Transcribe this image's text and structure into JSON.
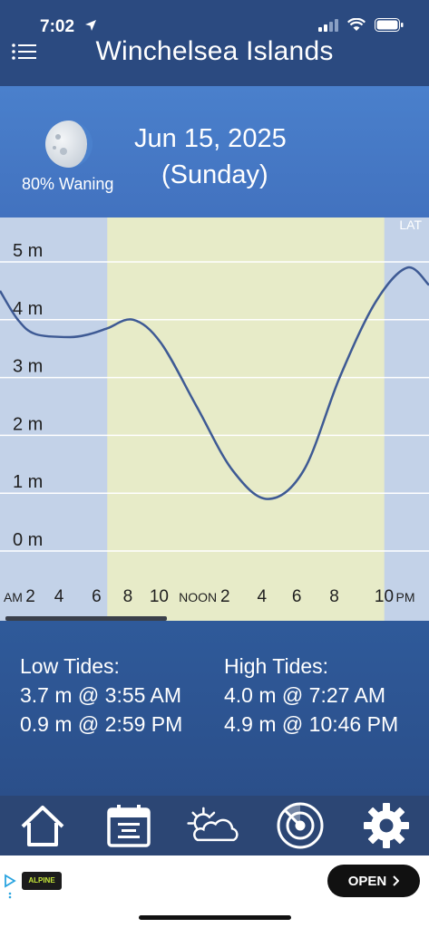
{
  "status": {
    "time": "7:02"
  },
  "header": {
    "title": "Winchelsea Islands"
  },
  "date_panel": {
    "moon_phase": "80% Waning",
    "date": "Jun 15, 2025",
    "weekday": "(Sunday)"
  },
  "chart_data": {
    "type": "line",
    "corner_label": "LAT",
    "y_ticks": [
      "5 m",
      "4 m",
      "3 m",
      "2 m",
      "1 m",
      "0 m"
    ],
    "x_ticks": [
      "AM",
      "2",
      "4",
      "6",
      "8",
      "10",
      "NOON",
      "2",
      "4",
      "6",
      "8",
      "10",
      "PM"
    ],
    "series": [
      {
        "x": [
          0,
          1,
          2,
          3.92,
          5,
          6,
          7.45,
          9,
          11,
          13,
          14.98,
          17,
          19,
          21,
          22.77,
          24
        ],
        "values": [
          4.5,
          4.0,
          3.75,
          3.7,
          3.75,
          3.85,
          4.0,
          3.6,
          2.5,
          1.4,
          0.9,
          1.4,
          3.0,
          4.3,
          4.9,
          4.6
        ]
      }
    ],
    "daylight": [
      6,
      21.5
    ],
    "ylim": [
      0,
      5.7
    ],
    "xlim": [
      0,
      24
    ]
  },
  "tides": {
    "low_title": "Low Tides:",
    "low": [
      "3.7 m @ 3:55 AM",
      "0.9 m @ 2:59 PM"
    ],
    "high_title": "High Tides:",
    "high": [
      "4.0 m @ 7:27 AM",
      "4.9 m @ 10:46 PM"
    ]
  },
  "nav": {
    "items": [
      "home-icon",
      "calendar-icon",
      "weather-icon",
      "radar-icon",
      "gear-icon"
    ]
  },
  "ad": {
    "brand": "ALPINE",
    "cta": "OPEN"
  }
}
